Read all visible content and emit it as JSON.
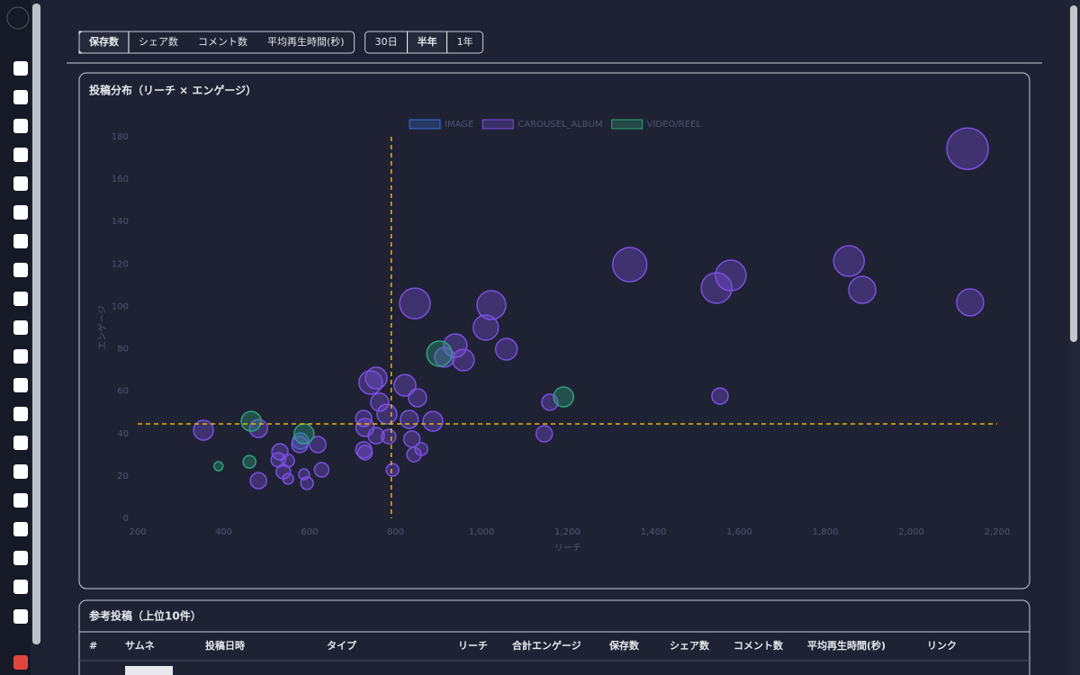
{
  "toolbar": {
    "metrics": [
      {
        "label": "保存数",
        "active": true
      },
      {
        "label": "シェア数",
        "active": false
      },
      {
        "label": "コメント数",
        "active": false
      },
      {
        "label": "平均再生時間(秒)",
        "active": false
      }
    ],
    "periods": [
      {
        "label": "30日",
        "active": false
      },
      {
        "label": "半年",
        "active": true
      },
      {
        "label": "1年",
        "active": false
      }
    ]
  },
  "chart_data": {
    "type": "bubble",
    "title": "投稿分布（リーチ × エンゲージ）",
    "x_label": "リーチ",
    "y_label": "エンゲージ",
    "xlim": [
      200,
      2200
    ],
    "xticks": [
      200,
      400,
      600,
      800,
      {
        "value": 1000,
        "label": "1,000"
      },
      {
        "value": 1200,
        "label": "1,200"
      },
      {
        "value": 1400,
        "label": "1,400"
      },
      {
        "value": 1600,
        "label": "1,600"
      },
      {
        "value": 1800,
        "label": "1,800"
      },
      {
        "value": 2000,
        "label": "2,000"
      },
      {
        "value": 2200,
        "label": "2,200"
      }
    ],
    "ylim": [
      0,
      180
    ],
    "yticks": [
      0,
      20,
      40,
      60,
      80,
      100,
      120,
      140,
      160,
      180
    ],
    "reference_lines": {
      "x": 790,
      "y": 44.6
    },
    "reference_color": "#e6b800",
    "series": [
      {
        "name": "IMAGE",
        "color": "#3b6fd4",
        "x": [
          579
        ],
        "values": [
          36.5
        ],
        "sizes": [
          9
        ]
      },
      {
        "name": "CAROUSEL_ALBUM",
        "color": "#7b4fe0",
        "x": [
          353,
          481,
          481,
          531,
          527,
          550,
          539,
          550,
          577,
          587,
          594,
          619,
          628,
          726,
          729,
          726,
          729,
          742,
          755,
          763,
          755,
          780,
          784,
          793,
          822,
          832,
          838,
          843,
          845,
          851,
          860,
          887,
          914,
          939,
          958,
          1010,
          1023,
          1058,
          1146,
          1159,
          1345,
          1547,
          1580,
          1555,
          1855,
          1886,
          2131,
          2137
        ],
        "values": [
          41.6,
          42.4,
          17.8,
          31.4,
          27.6,
          27.2,
          22,
          18.7,
          34.8,
          20.8,
          16.6,
          34.8,
          22.9,
          47.1,
          42.9,
          32.3,
          31,
          64.1,
          66.2,
          54.8,
          39,
          49.2,
          38.6,
          22.9,
          62.8,
          46.7,
          37.4,
          30.1,
          101.4,
          56.9,
          32.7,
          45.8,
          76,
          81.5,
          74.7,
          90,
          100.6,
          79.8,
          39.9,
          54.8,
          119.7,
          108.7,
          114.6,
          57.7,
          121.4,
          107.8,
          174.4,
          101.9
        ],
        "sizes": [
          11,
          10,
          9,
          9,
          8,
          7,
          8,
          6,
          9,
          6,
          7,
          9,
          8,
          9,
          10,
          9,
          8,
          13,
          12,
          10,
          9,
          11,
          8,
          7,
          12,
          10,
          9,
          8,
          17,
          10,
          7,
          11,
          11,
          13,
          12,
          14,
          16,
          12,
          9,
          9,
          19,
          17,
          17,
          9,
          17,
          15,
          23,
          15
        ]
      },
      {
        "name": "VIDEO/REEL",
        "color": "#2fa37a",
        "x": [
          464,
          388,
          460,
          587,
          902,
          1191
        ],
        "values": [
          45.8,
          24.6,
          26.7,
          39.9,
          77.7,
          57.3
        ],
        "sizes": [
          11,
          5,
          7,
          11,
          14,
          11
        ]
      }
    ]
  },
  "table": {
    "title": "参考投稿（上位10件）",
    "columns": [
      "#",
      "サムネ",
      "投稿日時",
      "タイプ",
      "リーチ",
      "合計エンゲージ",
      "保存数",
      "シェア数",
      "コメント数",
      "平均再生時間(秒)",
      "リンク"
    ]
  }
}
